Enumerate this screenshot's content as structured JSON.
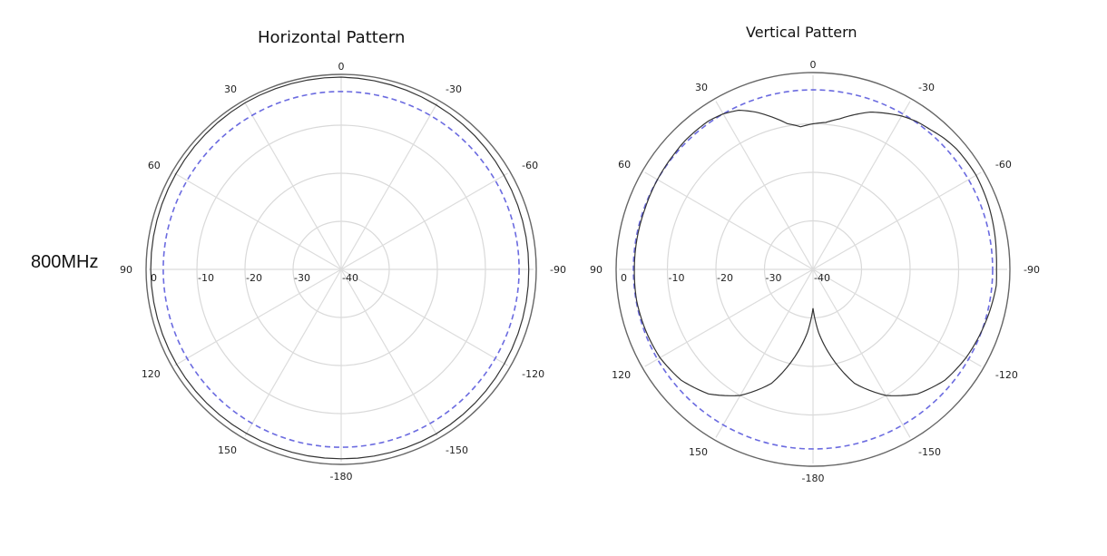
{
  "frequency_label": "800MHz",
  "chart_data": [
    {
      "type": "polar",
      "title": "Horizontal Pattern",
      "angle_tick_labels": [
        "0",
        "30",
        "60",
        "90",
        "120",
        "150",
        "-180",
        "-150",
        "-120",
        "-90",
        "-60",
        "-30"
      ],
      "radial_tick_labels": [
        "0",
        "-10",
        "-20",
        "-30",
        "-40"
      ],
      "radial_range_db": [
        -40,
        0
      ],
      "reference_level_db": -3,
      "grid": true,
      "series": [
        {
          "angles_deg": [
            0,
            30,
            60,
            90,
            120,
            150,
            180,
            210,
            240,
            270,
            300,
            330,
            360
          ],
          "gain_db": [
            0,
            0,
            -0.3,
            -0.4,
            -0.5,
            -0.6,
            -0.6,
            -0.5,
            -0.8,
            -1.0,
            -0.9,
            -0.5,
            0
          ]
        }
      ],
      "colors": {
        "pattern": "#333333",
        "reference": "#6b6be0",
        "grid": "#d9d9d9"
      }
    },
    {
      "type": "polar",
      "title": "Vertical Pattern",
      "angle_tick_labels": [
        "0",
        "30",
        "60",
        "90",
        "120",
        "150",
        "-180",
        "-150",
        "-120",
        "-90",
        "-60",
        "-30"
      ],
      "radial_tick_labels": [
        "0",
        "-10",
        "-20",
        "-30",
        "-40"
      ],
      "radial_range_db": [
        -40,
        0
      ],
      "reference_level_db": -3,
      "grid": true,
      "series": [
        {
          "angles_deg": [
            0,
            5,
            10,
            15,
            20,
            25,
            30,
            35,
            40,
            45,
            50,
            60,
            70,
            80,
            90,
            100,
            110,
            120,
            130,
            140,
            150,
            160,
            170,
            175,
            180,
            185,
            190,
            200,
            210,
            220,
            230,
            240,
            250,
            260,
            265,
            270,
            275,
            280,
            290,
            300,
            310,
            315,
            320,
            325,
            330,
            335,
            340,
            345,
            350,
            355,
            360
          ],
          "gain_db": [
            -10,
            -10.5,
            -9.5,
            -7.5,
            -5.5,
            -3.8,
            -3.0,
            -2.6,
            -2.6,
            -2.6,
            -2.8,
            -3.0,
            -3.2,
            -3.2,
            -3.2,
            -3.1,
            -3.3,
            -3.6,
            -4.5,
            -6.5,
            -10,
            -15,
            -23,
            -27,
            -32,
            -27,
            -23,
            -15,
            -10,
            -6.5,
            -4.5,
            -3.6,
            -3.0,
            -2.4,
            -2.1,
            -2.2,
            -2.1,
            -1.9,
            -1.5,
            -1.2,
            -1.4,
            -1.8,
            -2.4,
            -2.8,
            -3.5,
            -4.5,
            -5.5,
            -7.0,
            -8.5,
            -9.6,
            -10
          ]
        }
      ],
      "colors": {
        "pattern": "#333333",
        "reference": "#6b6be0",
        "grid": "#d9d9d9"
      }
    }
  ]
}
